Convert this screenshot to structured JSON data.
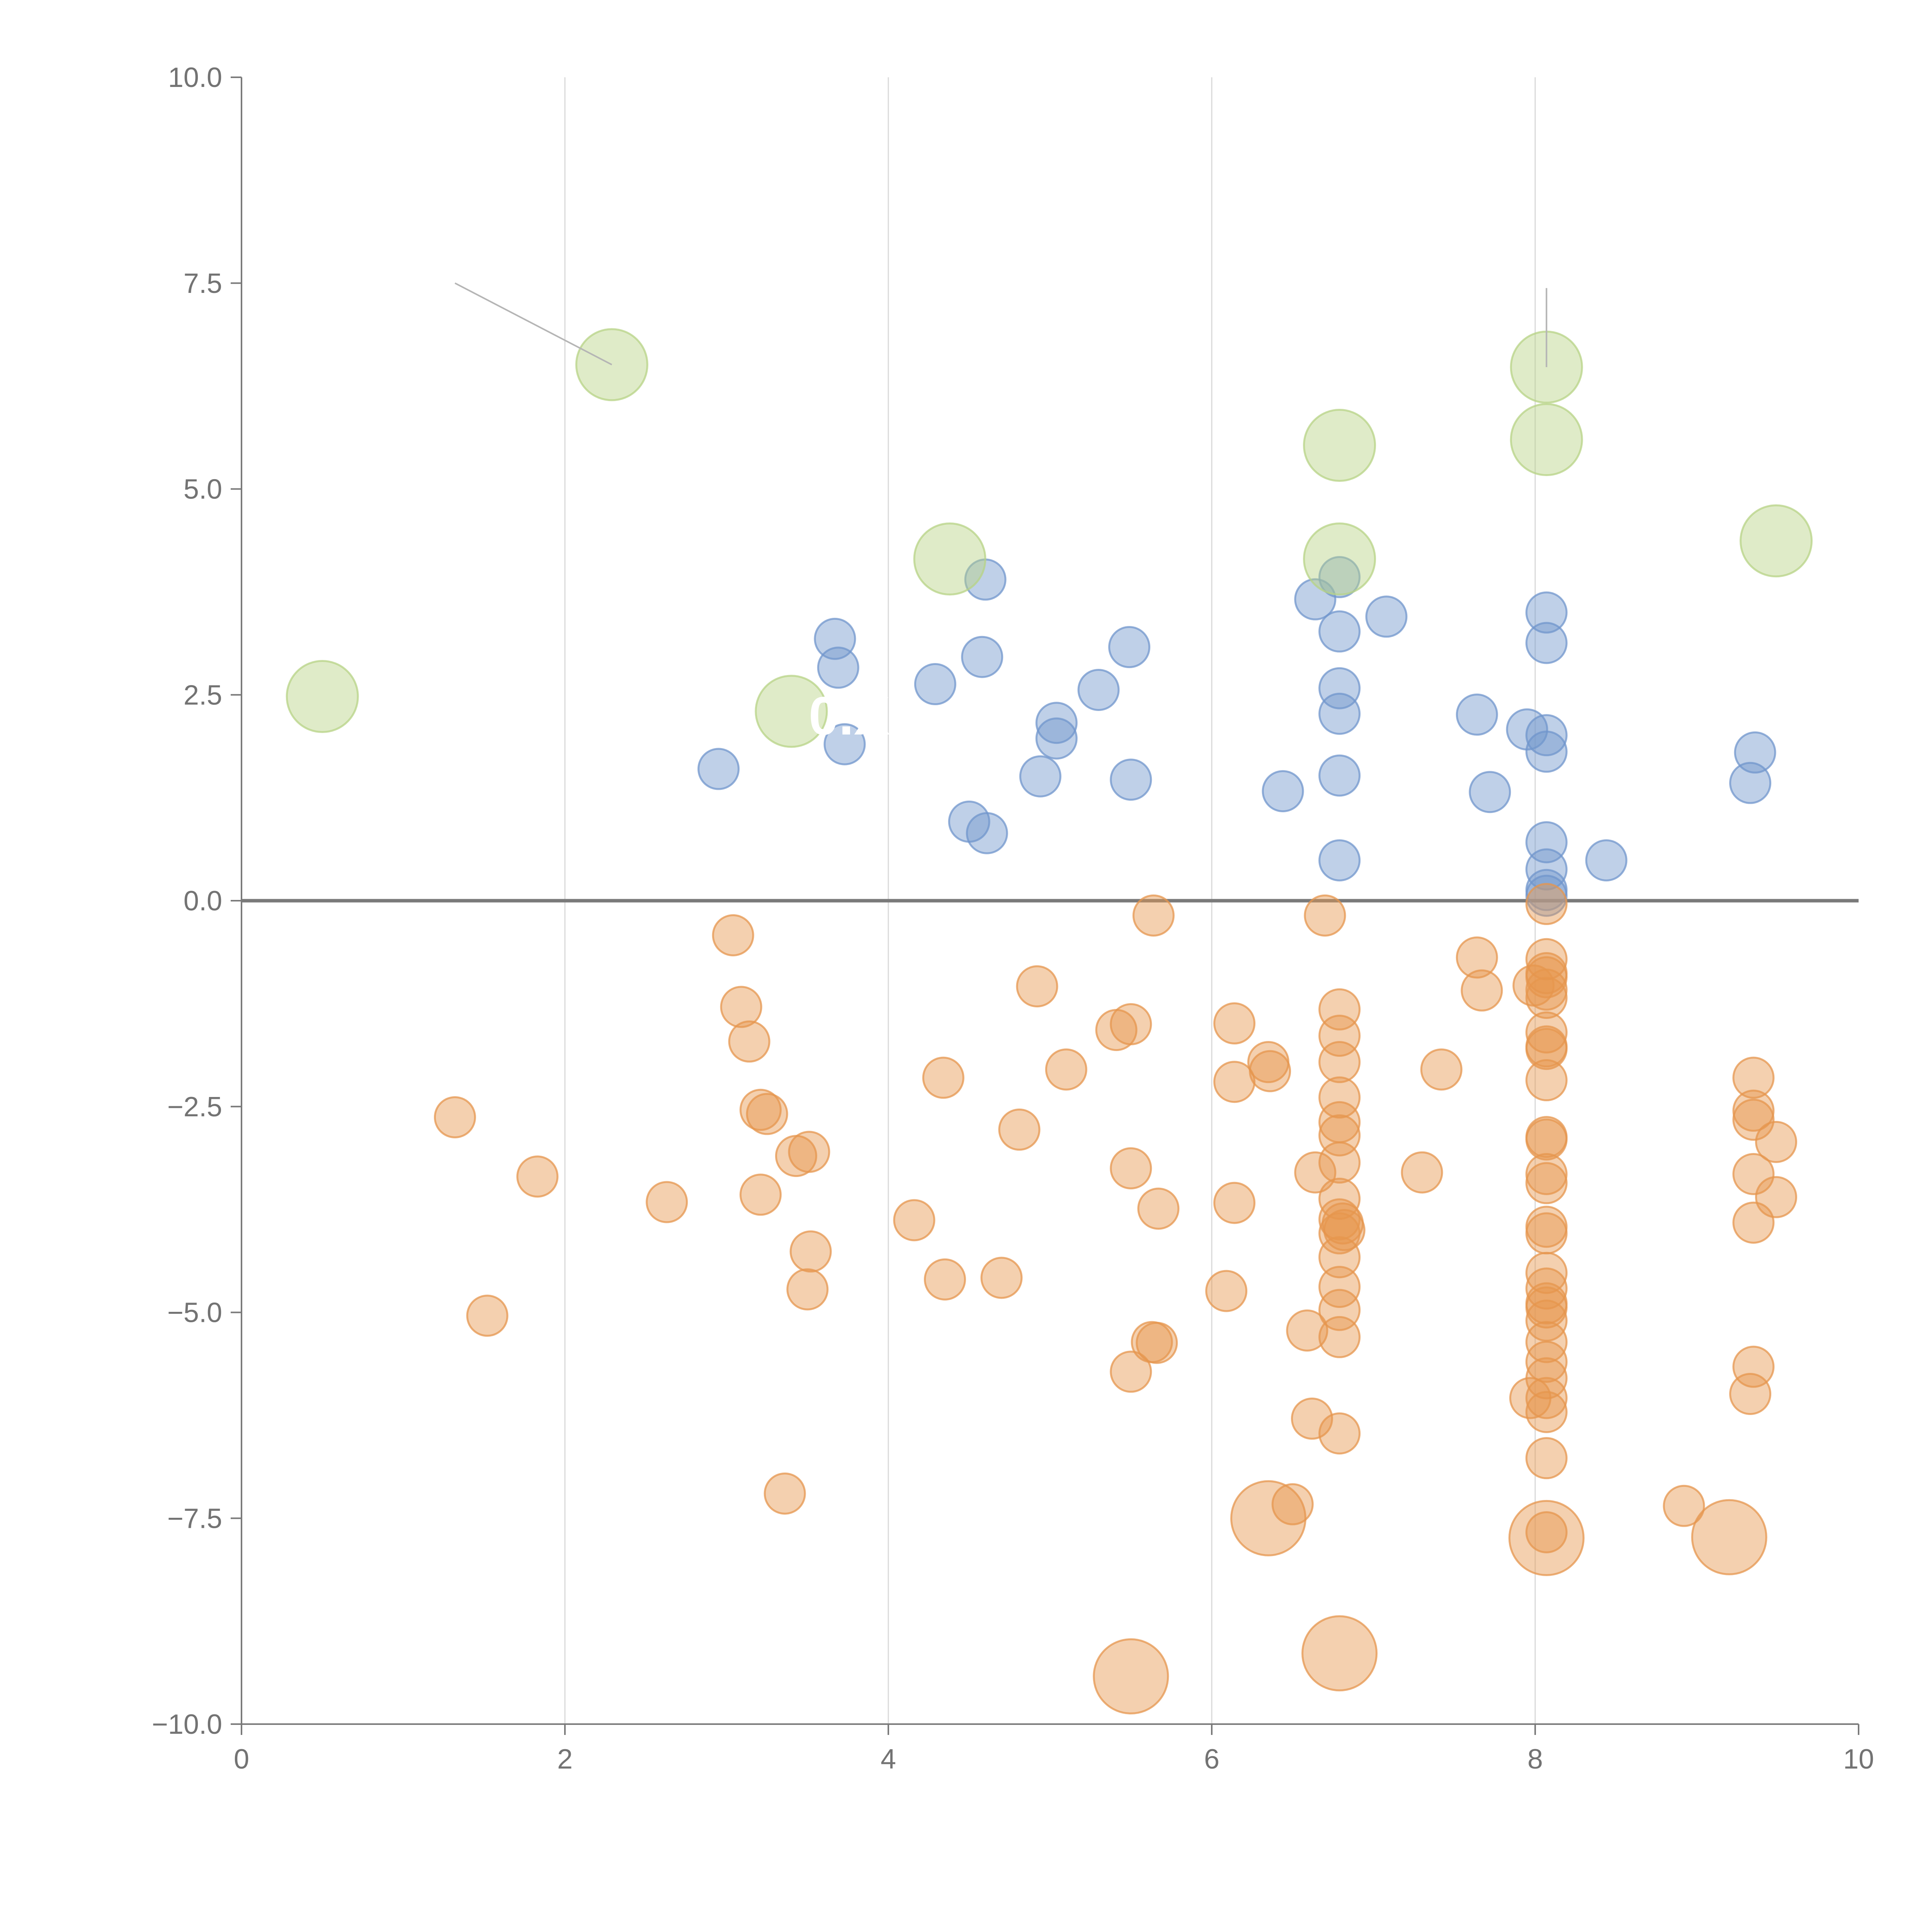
{
  "chart_data": {
    "type": "scatter",
    "title": "",
    "xlabel": "",
    "ylabel": "",
    "xlim": [
      0,
      10
    ],
    "ylim": [
      -10,
      10
    ],
    "x_ticks": [
      0,
      2,
      4,
      6,
      8,
      10
    ],
    "y_ticks": [
      -10,
      -7.5,
      -5,
      -2.5,
      0,
      2.5,
      5,
      7.5,
      10
    ],
    "x_tick_labels": [
      "0",
      "2",
      "4",
      "6",
      "8",
      "10"
    ],
    "y_tick_labels": [
      "−10.0",
      "−7.5",
      "−5.0",
      "−2.5",
      "0.0",
      "2.5",
      "5.0",
      "7.5",
      "10.0"
    ],
    "grid": "vertical",
    "legend": "none",
    "zero_line": true,
    "colors": {
      "positive": "#7096cc",
      "negative": "#e6964d",
      "highlight": "#b7d385",
      "axis": "#7a7a7a",
      "grid": "#d9d9d9",
      "leader": "#b5b5b5"
    },
    "series": [
      {
        "name": "positive",
        "color": "#7096cc",
        "points": [
          [
            2.95,
            1.6
          ],
          [
            3.67,
            3.18
          ],
          [
            3.69,
            2.83
          ],
          [
            3.73,
            1.9
          ],
          [
            4.29,
            2.63
          ],
          [
            4.5,
            0.96
          ],
          [
            4.58,
            2.96
          ],
          [
            4.6,
            3.9
          ],
          [
            4.61,
            0.82
          ],
          [
            4.94,
            1.51
          ],
          [
            5.04,
            2.16
          ],
          [
            5.04,
            1.97
          ],
          [
            5.3,
            2.56
          ],
          [
            5.49,
            3.08
          ],
          [
            5.5,
            1.47
          ],
          [
            6.44,
            1.33
          ],
          [
            6.64,
            3.66
          ],
          [
            6.79,
            3.93
          ],
          [
            6.79,
            3.27
          ],
          [
            6.79,
            2.58
          ],
          [
            6.79,
            2.27
          ],
          [
            6.79,
            1.52
          ],
          [
            6.79,
            0.49
          ],
          [
            7.08,
            3.45
          ],
          [
            7.64,
            2.26
          ],
          [
            7.72,
            1.32
          ],
          [
            7.95,
            2.08
          ],
          [
            8.07,
            3.5
          ],
          [
            8.07,
            3.13
          ],
          [
            8.07,
            2.01
          ],
          [
            8.07,
            1.81
          ],
          [
            8.07,
            0.71
          ],
          [
            8.07,
            0.38
          ],
          [
            8.07,
            0.13
          ],
          [
            8.07,
            0.06
          ],
          [
            8.44,
            0.49
          ],
          [
            9.33,
            1.43
          ],
          [
            9.36,
            1.8
          ]
        ]
      },
      {
        "name": "negative",
        "color": "#e6964d",
        "points": [
          [
            1.32,
            -2.63
          ],
          [
            1.52,
            -5.04
          ],
          [
            1.83,
            -3.35
          ],
          [
            2.63,
            -3.66
          ],
          [
            3.04,
            -0.42
          ],
          [
            3.09,
            -1.29
          ],
          [
            3.14,
            -1.71
          ],
          [
            3.21,
            -2.54
          ],
          [
            3.25,
            -2.59
          ],
          [
            3.21,
            -3.57
          ],
          [
            3.36,
            -7.2
          ],
          [
            3.43,
            -3.1
          ],
          [
            3.51,
            -3.05
          ],
          [
            3.5,
            -4.72
          ],
          [
            3.52,
            -4.26
          ],
          [
            4.16,
            -3.88
          ],
          [
            4.34,
            -2.15
          ],
          [
            4.35,
            -4.6
          ],
          [
            4.7,
            -4.58
          ],
          [
            4.81,
            -2.78
          ],
          [
            4.92,
            -1.04
          ],
          [
            5.1,
            -2.05
          ],
          [
            5.41,
            -1.57
          ],
          [
            5.5,
            -1.5
          ],
          [
            5.5,
            -3.25
          ],
          [
            5.5,
            -5.72
          ],
          [
            5.63,
            -5.36
          ],
          [
            5.66,
            -5.37
          ],
          [
            5.64,
            -0.18
          ],
          [
            5.67,
            -3.74
          ],
          [
            6.09,
            -4.74
          ],
          [
            6.14,
            -3.67
          ],
          [
            6.14,
            -2.2
          ],
          [
            6.14,
            -1.49
          ],
          [
            6.35,
            -1.96
          ],
          [
            6.36,
            -2.07
          ],
          [
            6.5,
            -7.33
          ],
          [
            6.59,
            -5.22
          ],
          [
            6.62,
            -6.29
          ],
          [
            6.64,
            -3.3
          ],
          [
            6.7,
            -0.18
          ],
          [
            6.79,
            -6.47
          ],
          [
            6.79,
            -5.3
          ],
          [
            6.79,
            -4.97
          ],
          [
            6.79,
            -4.69
          ],
          [
            6.79,
            -4.33
          ],
          [
            6.79,
            -4.04
          ],
          [
            6.79,
            -3.87
          ],
          [
            6.79,
            -3.62
          ],
          [
            6.79,
            -3.18
          ],
          [
            6.79,
            -2.85
          ],
          [
            6.79,
            -2.69
          ],
          [
            6.79,
            -2.39
          ],
          [
            6.79,
            -1.96
          ],
          [
            6.79,
            -1.64
          ],
          [
            6.79,
            -1.32
          ],
          [
            6.82,
            -4.0
          ],
          [
            6.81,
            -3.92
          ],
          [
            7.3,
            -3.3
          ],
          [
            7.42,
            -2.05
          ],
          [
            7.64,
            -0.69
          ],
          [
            7.67,
            -1.09
          ],
          [
            7.97,
            -6.04
          ],
          [
            7.99,
            -1.03
          ],
          [
            8.07,
            -7.67
          ],
          [
            8.07,
            -6.77
          ],
          [
            8.07,
            -6.21
          ],
          [
            8.07,
            -6.04
          ],
          [
            8.07,
            -5.8
          ],
          [
            8.07,
            -5.6
          ],
          [
            8.07,
            -5.36
          ],
          [
            8.07,
            -5.1
          ],
          [
            8.07,
            -4.94
          ],
          [
            8.07,
            -4.89
          ],
          [
            8.07,
            -4.71
          ],
          [
            8.07,
            -4.52
          ],
          [
            8.07,
            -4.04
          ],
          [
            8.07,
            -3.96
          ],
          [
            8.07,
            -3.43
          ],
          [
            8.07,
            -3.32
          ],
          [
            8.07,
            -2.9
          ],
          [
            8.07,
            -2.87
          ],
          [
            8.07,
            -2.18
          ],
          [
            8.07,
            -1.8
          ],
          [
            8.07,
            -1.77
          ],
          [
            8.07,
            -1.6
          ],
          [
            8.07,
            -1.18
          ],
          [
            8.07,
            -1.08
          ],
          [
            8.07,
            -0.93
          ],
          [
            8.07,
            -0.88
          ],
          [
            8.07,
            -0.71
          ],
          [
            8.07,
            -0.04
          ],
          [
            8.92,
            -7.35
          ],
          [
            9.33,
            -5.99
          ],
          [
            9.35,
            -5.66
          ],
          [
            9.35,
            -3.91
          ],
          [
            9.35,
            -3.32
          ],
          [
            9.35,
            -2.66
          ],
          [
            9.35,
            -2.55
          ],
          [
            9.35,
            -2.15
          ],
          [
            9.49,
            -2.93
          ],
          [
            9.49,
            -3.6
          ]
        ]
      },
      {
        "name": "highlighted",
        "color": "#b7d385",
        "points": [
          [
            0.5,
            2.48
          ],
          [
            2.29,
            6.51
          ],
          [
            3.4,
            2.3
          ],
          [
            4.38,
            4.15
          ],
          [
            6.79,
            5.53
          ],
          [
            6.79,
            4.15
          ],
          [
            8.07,
            6.48
          ],
          [
            8.07,
            5.6
          ],
          [
            9.49,
            4.37
          ]
        ]
      },
      {
        "name": "highlighted-negative",
        "color": "#e6964d",
        "points": [
          [
            5.5,
            -9.42
          ],
          [
            6.35,
            -7.5
          ],
          [
            6.79,
            -9.14
          ],
          [
            8.07,
            -7.74
          ],
          [
            9.2,
            -7.73
          ]
        ]
      }
    ],
    "annotations": [
      {
        "text": "0.X",
        "x": 3.4,
        "y": 2.3
      }
    ],
    "leader_lines": [
      {
        "from": [
          1.32,
          7.5
        ],
        "to": [
          2.29,
          6.51
        ]
      },
      {
        "from": [
          8.07,
          7.44
        ],
        "to": [
          8.07,
          6.48
        ]
      }
    ]
  }
}
